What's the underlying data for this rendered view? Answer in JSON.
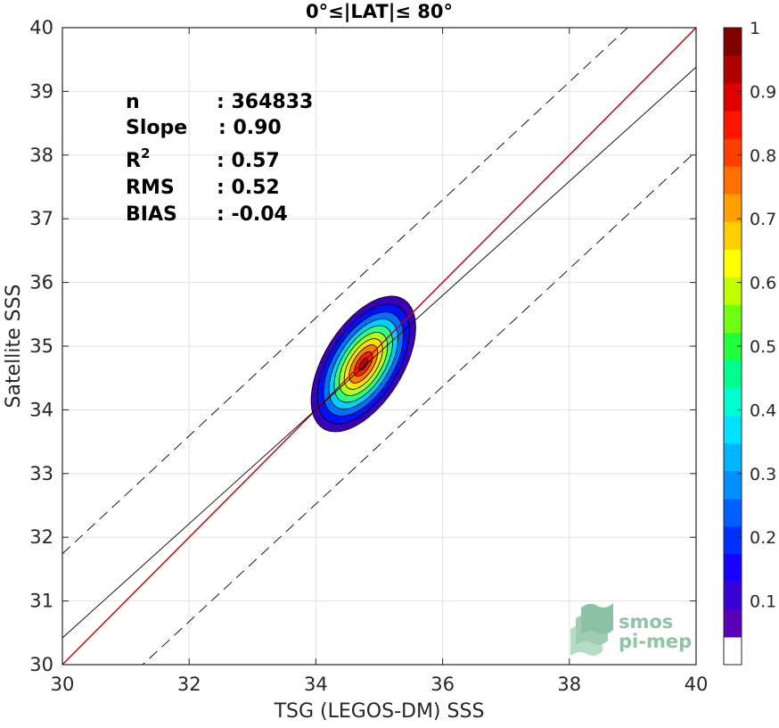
{
  "chart_data": {
    "type": "heatmap",
    "title": "0°≤|LAT|≤ 80°",
    "xlabel": "TSG (LEGOS-DM) SSS",
    "ylabel": "Satellite SSS",
    "xlim": [
      30,
      40
    ],
    "ylim": [
      30,
      40
    ],
    "x_ticks": [
      30,
      32,
      34,
      36,
      38,
      40
    ],
    "y_ticks": [
      30,
      31,
      32,
      33,
      34,
      35,
      36,
      37,
      38,
      39,
      40
    ],
    "grid": true,
    "stats": [
      {
        "label": "n",
        "value": ": 364833"
      },
      {
        "label": "Slope",
        "value": ": 0.90"
      },
      {
        "label": "R",
        "sup": "2",
        "value": ": 0.57"
      },
      {
        "label": "RMS",
        "value": ": 0.52"
      },
      {
        "label": "BIAS",
        "value": ": -0.04"
      }
    ],
    "lines": {
      "identity": {
        "x": [
          30,
          40
        ],
        "y": [
          30,
          40
        ],
        "color": "#c00000",
        "style": "solid"
      },
      "regression": {
        "x": [
          30,
          40
        ],
        "y": [
          30.42,
          39.38
        ],
        "color": "#000000",
        "style": "solid"
      },
      "upper_bound": {
        "x": [
          30,
          40
        ],
        "y": [
          31.74,
          41.0
        ],
        "color": "#000000",
        "style": "dashed"
      },
      "lower_bound": {
        "x": [
          30,
          40
        ],
        "y": [
          28.83,
          38.06
        ],
        "color": "#000000",
        "style": "dashed"
      }
    },
    "density": {
      "center": [
        34.75,
        34.72
      ],
      "tilt_deg": 58,
      "note": "normalized density contours",
      "levels": [
        {
          "level": 0.05,
          "a": 1.2,
          "b": 0.62,
          "color": "#3a00b8"
        },
        {
          "level": 0.15,
          "a": 1.06,
          "b": 0.54,
          "color": "#0010ff"
        },
        {
          "level": 0.25,
          "a": 0.92,
          "b": 0.47,
          "color": "#0070ff"
        },
        {
          "level": 0.35,
          "a": 0.8,
          "b": 0.4,
          "color": "#00d0ff"
        },
        {
          "level": 0.45,
          "a": 0.68,
          "b": 0.34,
          "color": "#30ff80"
        },
        {
          "level": 0.55,
          "a": 0.56,
          "b": 0.28,
          "color": "#b0ff20"
        },
        {
          "level": 0.65,
          "a": 0.45,
          "b": 0.22,
          "color": "#ffe000"
        },
        {
          "level": 0.75,
          "a": 0.34,
          "b": 0.16,
          "color": "#ff8000"
        },
        {
          "level": 0.85,
          "a": 0.22,
          "b": 0.1,
          "color": "#ff2000"
        },
        {
          "level": 0.95,
          "a": 0.11,
          "b": 0.05,
          "color": "#c00000"
        }
      ]
    },
    "colorbar": {
      "range": [
        0,
        1
      ],
      "ticks": [
        "0.1",
        "0.2",
        "0.3",
        "0.4",
        "0.5",
        "0.6",
        "0.7",
        "0.8",
        "0.9",
        "1"
      ],
      "tick_values": [
        0.1,
        0.2,
        0.3,
        0.4,
        0.5,
        0.6,
        0.7,
        0.8,
        0.9,
        1.0
      ],
      "colors": [
        "#ffffff",
        "#5a00b8",
        "#3a00d8",
        "#1a00ff",
        "#0030ff",
        "#0060ff",
        "#0090ff",
        "#00b4ff",
        "#00e0ff",
        "#00ffd0",
        "#00ff90",
        "#20ff40",
        "#70ff10",
        "#c0ff00",
        "#ffff00",
        "#ffd000",
        "#ffa000",
        "#ff7000",
        "#ff4000",
        "#ff1500",
        "#e00000",
        "#b00000",
        "#800000"
      ]
    }
  },
  "logo": {
    "line1": "smos",
    "line2": "pi-mep",
    "icon": "wave-layers-icon",
    "color": "#8fc4a6"
  }
}
